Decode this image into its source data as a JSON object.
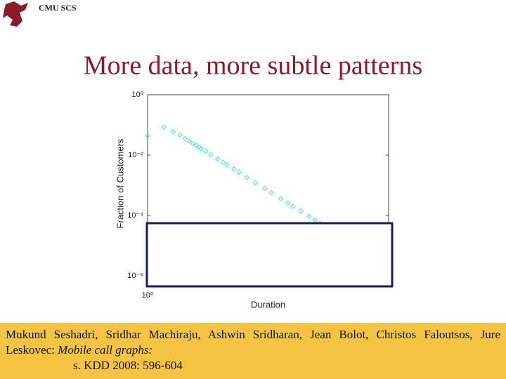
{
  "header": "CMU SCS",
  "title": "More data, more subtle patterns",
  "chart_data": {
    "type": "scatter",
    "xlabel": "Duration",
    "ylabel": "Fraction of Customers",
    "xscale": "log",
    "yscale": "log",
    "xlim": [
      1,
      30000
    ],
    "ylim": [
      4.5e-07,
      1
    ],
    "xticks": [
      {
        "value": 1,
        "label": "10⁰"
      }
    ],
    "yticks": [
      {
        "value": 1,
        "label": "10⁰"
      },
      {
        "value": 0.01,
        "label": "10⁻²"
      },
      {
        "value": 0.0001,
        "label": "10⁻⁴"
      },
      {
        "value": 1e-06,
        "label": "10⁻⁶"
      }
    ],
    "color": "#3fe0e0",
    "x": [
      1,
      2,
      3,
      4,
      5,
      6,
      7,
      8,
      9,
      10,
      12,
      15,
      20,
      25,
      30,
      40,
      50,
      70,
      100,
      150,
      200,
      300,
      400,
      500,
      700,
      1000,
      1300,
      1600
    ],
    "values": [
      0.044,
      0.083,
      0.06,
      0.046,
      0.0354,
      0.0289,
      0.0243,
      0.0209,
      0.0184,
      0.0163,
      0.0133,
      0.0104,
      0.0075,
      0.0058,
      0.0048,
      0.0035,
      0.0027,
      0.0018,
      0.00124,
      0.00079,
      0.00057,
      0.00036,
      0.00026,
      0.0002,
      0.00014,
      9.4e-05,
      7e-05,
      5.5e-05
    ]
  },
  "citation": {
    "authors": "Mukund Seshadri, Sridhar Machiraju, Ashwin Sridharan, Jean Bolot, Christos Faloutsos, Jure Leskovec:",
    "title": "Mobile call graphs:",
    "venue": "s. KDD 2008: 596-604"
  }
}
